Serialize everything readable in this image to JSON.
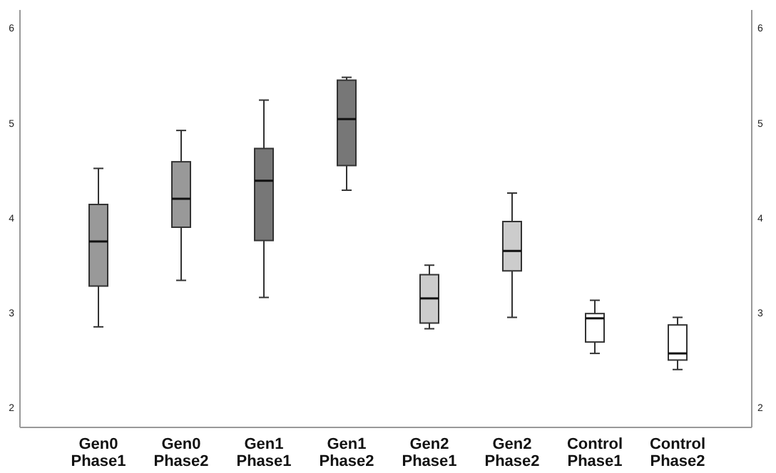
{
  "chart_data": {
    "type": "box",
    "categories": [
      "Gen0\nPhase1",
      "Gen0\nPhase2",
      "Gen1\nPhase1",
      "Gen1\nPhase2",
      "Gen2\nPhase1",
      "Gen2\nPhase2",
      "Control\nPhase1",
      "Control\nPhase2"
    ],
    "boxes": [
      {
        "low": 2.86,
        "q1": 3.29,
        "median": 3.76,
        "q3": 4.15,
        "high": 4.53
      },
      {
        "low": 3.35,
        "q1": 3.91,
        "median": 4.21,
        "q3": 4.6,
        "high": 4.93
      },
      {
        "low": 3.17,
        "q1": 3.77,
        "median": 4.4,
        "q3": 4.74,
        "high": 5.25
      },
      {
        "low": 4.3,
        "q1": 4.56,
        "median": 5.05,
        "q3": 5.46,
        "high": 5.49
      },
      {
        "low": 2.84,
        "q1": 2.9,
        "median": 3.16,
        "q3": 3.41,
        "high": 3.51
      },
      {
        "low": 2.96,
        "q1": 3.45,
        "median": 3.66,
        "q3": 3.97,
        "high": 4.27
      },
      {
        "low": 2.58,
        "q1": 2.7,
        "median": 2.95,
        "q3": 3.0,
        "high": 3.14
      },
      {
        "low": 2.41,
        "q1": 2.51,
        "median": 2.58,
        "q3": 2.88,
        "high": 2.96
      }
    ],
    "colors": [
      "#999999",
      "#999999",
      "#777777",
      "#777777",
      "#cccccc",
      "#cccccc",
      "#ffffff",
      "#ffffff"
    ],
    "ylim": [
      1.8,
      6.2
    ],
    "yticks": [
      2,
      3,
      4,
      5,
      6
    ],
    "y2lim": [
      1.8,
      6.2
    ],
    "y2ticks": [
      2,
      3,
      4,
      5,
      6
    ]
  }
}
